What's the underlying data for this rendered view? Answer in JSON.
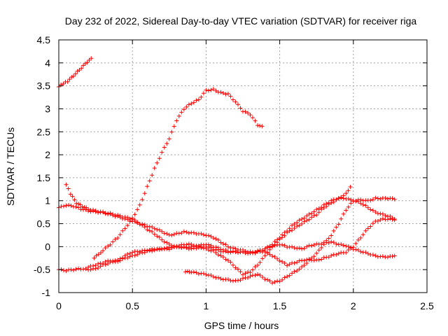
{
  "chart_data": {
    "type": "scatter",
    "title": "Day 232 of 2022, Sidereal Day-to-day VTEC variation (SDTVAR) for receiver riga",
    "xlabel": "GPS time / hours",
    "ylabel": "SDTVAR / TECUs",
    "xlim": [
      0,
      2.5
    ],
    "ylim": [
      -1,
      4.5
    ],
    "xticks": [
      "0",
      "0.5",
      "1",
      "1.5",
      "2",
      "2.5"
    ],
    "yticks": [
      "-1",
      "-0.5",
      "0",
      "0.5",
      "1",
      "1.5",
      "2",
      "2.5",
      "3",
      "3.5",
      "4",
      "4.5"
    ],
    "grid": true,
    "marker": "plus",
    "color": "#ff0000",
    "series": [
      {
        "x": [
          0.0,
          0.03,
          0.06,
          0.1,
          0.14,
          0.18,
          0.22
        ],
        "y": [
          3.48,
          3.55,
          3.6,
          3.72,
          3.85,
          3.98,
          4.1
        ]
      },
      {
        "x": [
          0.24,
          0.3,
          0.35,
          0.4,
          0.45,
          0.5,
          0.55,
          0.6,
          0.65,
          0.7,
          0.75,
          0.8,
          0.85,
          0.9,
          0.95,
          1.0,
          1.05,
          1.1,
          1.15,
          1.2,
          1.25,
          1.3,
          1.35,
          1.38
        ],
        "y": [
          -0.25,
          -0.08,
          0.05,
          0.2,
          0.4,
          0.62,
          0.9,
          1.3,
          1.7,
          2.05,
          2.35,
          2.75,
          3.0,
          3.12,
          3.2,
          3.4,
          3.42,
          3.35,
          3.32,
          3.15,
          2.95,
          2.88,
          2.65,
          2.62
        ]
      },
      {
        "x": [
          0.0,
          0.05,
          0.1,
          0.15,
          0.2,
          0.25,
          0.3,
          0.35,
          0.4,
          0.45,
          0.5,
          0.55,
          0.6,
          0.65,
          0.7,
          0.75,
          0.8,
          0.85,
          0.9,
          0.95,
          1.0,
          1.05,
          1.1,
          1.15,
          1.2,
          1.25,
          1.3,
          1.35,
          1.4,
          1.45,
          1.5,
          1.55,
          1.6,
          1.65,
          1.7,
          1.75,
          1.8,
          1.85,
          1.9,
          1.95,
          2.0,
          2.05,
          2.1,
          2.15,
          2.2,
          2.25,
          2.28
        ],
        "y": [
          0.85,
          0.9,
          0.88,
          0.82,
          0.78,
          0.76,
          0.74,
          0.7,
          0.65,
          0.6,
          0.55,
          0.5,
          0.45,
          0.4,
          0.33,
          0.25,
          0.28,
          0.32,
          0.3,
          0.28,
          0.25,
          0.2,
          0.1,
          0.0,
          -0.05,
          -0.08,
          -0.12,
          -0.1,
          -0.05,
          0.0,
          0.05,
          0.0,
          -0.02,
          -0.05,
          0.02,
          0.05,
          0.08,
          0.1,
          0.05,
          0.02,
          -0.05,
          -0.1,
          -0.15,
          -0.2,
          -0.22,
          -0.22,
          -0.2
        ]
      },
      {
        "x": [
          0.05,
          0.08,
          0.12,
          0.16,
          0.2,
          0.25,
          0.3,
          0.35,
          0.4,
          0.45,
          0.5,
          0.55,
          0.6,
          0.65,
          0.7,
          0.75,
          0.8,
          0.85,
          0.9,
          0.95,
          1.0,
          1.05,
          1.1,
          1.15,
          1.2,
          1.25,
          1.3,
          1.35,
          1.4,
          1.45,
          1.5,
          1.55,
          1.6,
          1.65,
          1.7,
          1.75,
          1.8,
          1.85,
          1.9,
          1.95,
          2.0,
          2.05,
          2.1,
          2.15,
          2.2,
          2.25,
          2.28
        ],
        "y": [
          1.35,
          1.15,
          0.95,
          0.88,
          0.82,
          0.78,
          0.75,
          0.72,
          0.68,
          0.64,
          0.6,
          0.5,
          0.38,
          0.28,
          0.15,
          0.05,
          0.0,
          -0.02,
          -0.05,
          -0.02,
          0.0,
          -0.05,
          -0.1,
          -0.12,
          -0.1,
          -0.12,
          -0.15,
          -0.12,
          -0.1,
          -0.2,
          -0.3,
          -0.4,
          -0.35,
          -0.3,
          -0.28,
          -0.3,
          -0.25,
          -0.2,
          -0.15,
          -0.12,
          0.0,
          0.2,
          0.4,
          0.55,
          0.6,
          0.6,
          0.58
        ]
      },
      {
        "x": [
          0.0,
          0.05,
          0.1,
          0.15,
          0.2,
          0.25,
          0.3,
          0.35,
          0.4,
          0.45,
          0.5,
          0.55,
          0.6,
          0.65,
          0.7,
          0.75,
          0.8,
          0.85,
          0.9,
          0.95,
          1.0,
          1.05,
          1.1,
          1.15,
          1.2,
          1.25,
          1.3,
          1.35,
          1.4,
          1.45,
          1.5,
          1.55,
          1.6,
          1.65,
          1.7,
          1.75,
          1.8,
          1.85,
          1.9,
          1.95,
          2.0,
          2.05,
          2.1,
          2.15,
          2.2,
          2.25,
          2.28
        ],
        "y": [
          -0.5,
          -0.52,
          -0.5,
          -0.48,
          -0.5,
          -0.48,
          -0.4,
          -0.35,
          -0.3,
          -0.2,
          -0.12,
          -0.1,
          -0.08,
          -0.05,
          -0.05,
          -0.02,
          0.0,
          -0.02,
          0.0,
          0.02,
          0.05,
          0.0,
          -0.05,
          -0.1,
          -0.12,
          -0.12,
          -0.15,
          -0.1,
          -0.05,
          0.05,
          0.2,
          0.35,
          0.5,
          0.6,
          0.7,
          0.8,
          0.9,
          1.0,
          1.05,
          1.05,
          1.0,
          0.95,
          0.85,
          0.75,
          0.7,
          0.65,
          0.6
        ]
      },
      {
        "x": [
          0.86,
          0.9,
          0.95,
          1.0,
          1.05,
          1.1,
          1.15,
          1.2,
          1.25,
          1.3,
          1.35,
          1.4,
          1.45,
          1.5,
          1.55,
          1.6,
          1.65,
          1.7,
          1.75,
          1.8,
          1.85,
          1.9,
          1.95,
          2.0,
          2.05,
          2.1,
          2.15,
          2.2,
          2.25,
          2.28
        ],
        "y": [
          -0.55,
          -0.55,
          -0.58,
          -0.6,
          -0.65,
          -0.7,
          -0.72,
          -0.75,
          -0.7,
          -0.65,
          -0.6,
          -0.7,
          -0.78,
          -0.75,
          -0.65,
          -0.55,
          -0.45,
          -0.3,
          -0.15,
          0.05,
          0.25,
          0.5,
          0.8,
          1.0,
          1.02,
          1.0,
          1.05,
          1.05,
          1.05,
          1.03
        ]
      },
      {
        "x": [
          0.2,
          0.25,
          0.3,
          0.35,
          0.4,
          0.45,
          0.5,
          0.55,
          0.6,
          0.65,
          0.7,
          0.75,
          0.8,
          0.85,
          0.9,
          0.95,
          1.0,
          1.05,
          1.1,
          1.15,
          1.2,
          1.25,
          1.3,
          1.35,
          1.4,
          1.45,
          1.5,
          1.55,
          1.6,
          1.65,
          1.7,
          1.75,
          1.8,
          1.85,
          1.9,
          1.95,
          1.98
        ],
        "y": [
          -0.45,
          -0.4,
          -0.35,
          -0.3,
          -0.32,
          -0.25,
          -0.2,
          -0.15,
          -0.1,
          -0.08,
          -0.05,
          -0.05,
          0.0,
          0.05,
          0.05,
          0.0,
          -0.05,
          -0.1,
          -0.2,
          -0.3,
          -0.45,
          -0.6,
          -0.55,
          -0.4,
          -0.2,
          0.0,
          0.15,
          0.3,
          0.4,
          0.5,
          0.6,
          0.7,
          0.85,
          0.95,
          1.05,
          1.15,
          1.3
        ]
      }
    ]
  }
}
